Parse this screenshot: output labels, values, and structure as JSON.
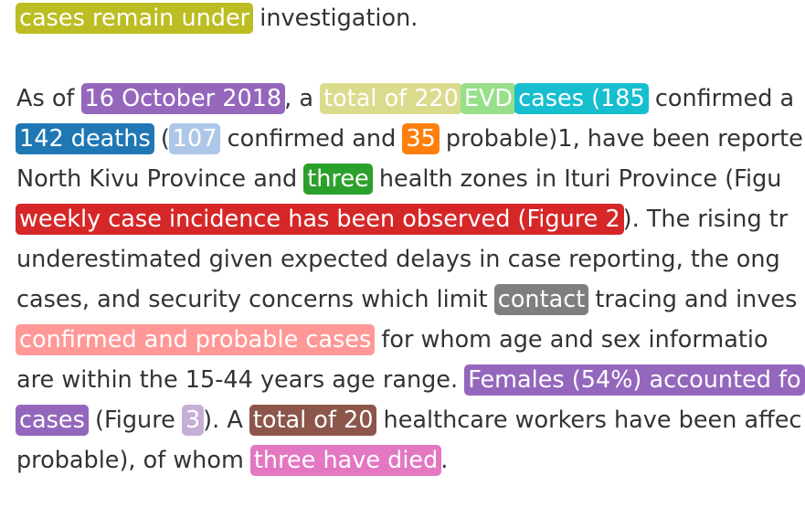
{
  "document": {
    "line1": {
      "highlight_1": "cases remain under",
      "text_1": " investigation."
    },
    "line2": {
      "text_1": "As of ",
      "date": "16 October 2018",
      "text_2": ", a ",
      "total": "total of 220",
      "evd": "EVD",
      "cases": "cases (185",
      "text_3": " confirmed a"
    },
    "line3": {
      "deaths": "142 deaths",
      "text_1": " (",
      "confirmed_count": "107",
      "text_2": " confirmed and ",
      "probable_count": "35",
      "text_3": " probable)1, have been reporte"
    },
    "line4": {
      "text_1": "North Kivu Province and ",
      "three": "three",
      "text_2": " health zones in Ituri Province (Figu"
    },
    "line5": {
      "weekly": "weekly case incidence has been observed (Figure 2",
      "text_1": "). The rising tr"
    },
    "line6": {
      "text_1": "underestimated given expected delays in case reporting, the ong"
    },
    "line7": {
      "text_1": "cases, and security concerns which limit ",
      "contact": "contact",
      "text_2": " tracing and inves"
    },
    "line8": {
      "confirmed_probable": "confirmed and probable cases",
      "text_1": " for whom age and sex informatio"
    },
    "line9": {
      "text_1": "are within the 15-44 years age range. ",
      "females": "Females (54%) accounted fo"
    },
    "line10": {
      "cases": "cases",
      "text_1": " (Figure ",
      "figure_num": "3",
      "text_2": "). A ",
      "total_20": "total of 20",
      "text_3": " healthcare workers have been affec"
    },
    "line11": {
      "text_1": "probable), of whom ",
      "died": "three have died",
      "text_2": "."
    }
  },
  "colors": {
    "olive": "#bcbd22",
    "purple": "#9467bd",
    "khaki": "#dbdb8d",
    "light_green": "#98df8a",
    "cyan": "#17becf",
    "blue": "#1f77b4",
    "light_blue": "#aec7e8",
    "orange": "#ff7f0e",
    "green": "#2ca02c",
    "red": "#d62728",
    "gray": "#7f7f7f",
    "salmon": "#ff9896",
    "lavender": "#c5b0d5",
    "brown": "#8c564b",
    "pink": "#e377c2"
  }
}
